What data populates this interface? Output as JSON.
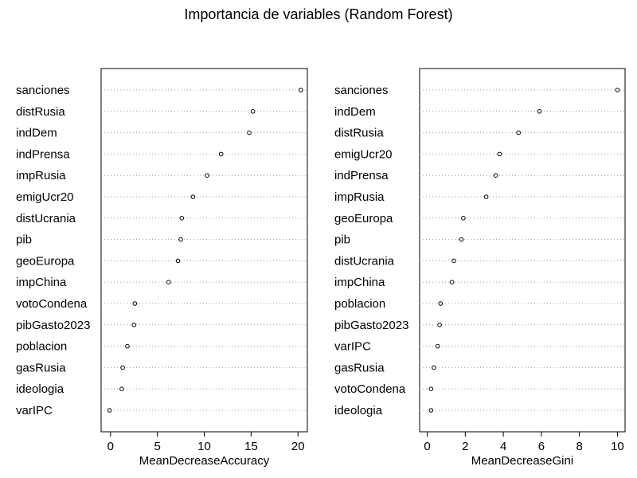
{
  "title": "Importancia de variables (Random Forest)",
  "chart_data": [
    {
      "type": "scatter",
      "xlabel": "MeanDecreaseAccuracy",
      "xlim": [
        -1,
        21
      ],
      "xticks": [
        0,
        5,
        10,
        15,
        20
      ],
      "grid": "dotted-horizontal",
      "variables": [
        "sanciones",
        "distRusia",
        "indDem",
        "indPrensa",
        "impRusia",
        "emigUcr20",
        "distUcrania",
        "pib",
        "geoEuropa",
        "impChina",
        "votoCondena",
        "pibGasto2023",
        "poblacion",
        "gasRusia",
        "ideologia",
        "varIPC"
      ],
      "values": [
        20.3,
        15.2,
        14.8,
        11.8,
        10.3,
        8.8,
        7.6,
        7.5,
        7.2,
        6.2,
        2.6,
        2.5,
        1.8,
        1.3,
        1.2,
        -0.1
      ]
    },
    {
      "type": "scatter",
      "xlabel": "MeanDecreaseGini",
      "xlim": [
        -0.4,
        10.4
      ],
      "xticks": [
        0,
        2,
        4,
        6,
        8,
        10
      ],
      "grid": "dotted-horizontal",
      "variables": [
        "sanciones",
        "indDem",
        "distRusia",
        "emigUcr20",
        "indPrensa",
        "impRusia",
        "geoEuropa",
        "pib",
        "distUcrania",
        "impChina",
        "poblacion",
        "pibGasto2023",
        "varIPC",
        "gasRusia",
        "votoCondena",
        "ideologia"
      ],
      "values": [
        10.0,
        5.9,
        4.8,
        3.8,
        3.6,
        3.1,
        1.9,
        1.8,
        1.4,
        1.3,
        0.7,
        0.65,
        0.55,
        0.35,
        0.2,
        0.2
      ]
    }
  ]
}
